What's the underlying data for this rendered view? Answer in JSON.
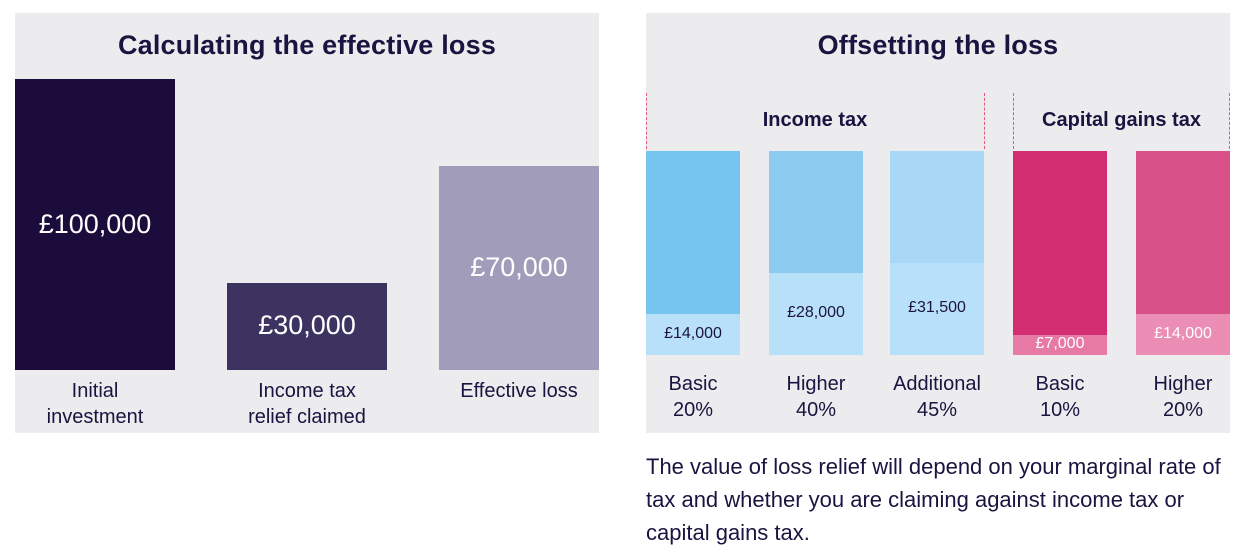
{
  "chart_data": [
    {
      "type": "bar",
      "title": "Calculating the effective loss",
      "categories": [
        "Initial investment",
        "Income tax relief claimed",
        "Effective loss"
      ],
      "category_lines": [
        [
          "Initial",
          "investment"
        ],
        [
          "Income tax",
          "relief claimed"
        ],
        [
          "Effective loss"
        ]
      ],
      "values": [
        100000,
        30000,
        70000
      ],
      "value_labels": [
        "£100,000",
        "£30,000",
        "£70,000"
      ],
      "colors": [
        "#1c0c3b",
        "#3c3360",
        "#a19cb9"
      ],
      "ylim": [
        0,
        100000
      ],
      "grid": false
    },
    {
      "type": "bar",
      "title": "Offsetting the loss",
      "groups": [
        {
          "label": "Income tax",
          "categories": [
            0,
            1,
            2
          ]
        },
        {
          "label": "Capital gains tax",
          "categories": [
            3,
            4
          ]
        }
      ],
      "categories": [
        "Basic 20%",
        "Higher 40%",
        "Additional 45%",
        "Basic 10%",
        "Higher 20%"
      ],
      "category_lines": [
        [
          "Basic",
          "20%"
        ],
        [
          "Higher",
          "40%"
        ],
        [
          "Additional",
          "45%"
        ],
        [
          "Basic",
          "10%"
        ],
        [
          "Higher",
          "20%"
        ]
      ],
      "totals": [
        70000,
        70000,
        70000,
        70000,
        70000
      ],
      "values": [
        14000,
        28000,
        31500,
        7000,
        14000
      ],
      "value_labels": [
        "£14,000",
        "£28,000",
        "£31,500",
        "£7,000",
        "£14,000"
      ],
      "colors": {
        "income_top": [
          "#76c5ee",
          "#8ccbef",
          "#a8d8f5"
        ],
        "income_relief": "#b8e0f8",
        "cgt_top": [
          "#d42e72",
          "#d85188"
        ],
        "cgt_relief": [
          "#e67aa5",
          "#eb8db4"
        ]
      },
      "ylim": [
        0,
        70000
      ],
      "grid": false
    }
  ],
  "caption": "The value of loss relief will depend on your marginal rate of tax and whether you are claiming against income tax or capital gains tax."
}
